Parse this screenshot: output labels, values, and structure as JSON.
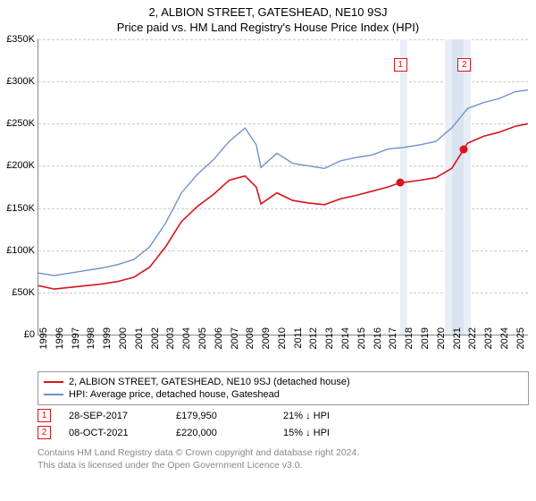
{
  "title_line1": "2, ALBION STREET, GATESHEAD, NE10 9SJ",
  "title_line2": "Price paid vs. HM Land Registry's House Price Index (HPI)",
  "chart": {
    "type": "line",
    "background_color": "#ffffff",
    "grid_color": "#cccccc",
    "x_min": 1995,
    "x_max": 2025.8,
    "y_min": 0,
    "y_max": 350000,
    "y_ticks": [
      0,
      50000,
      100000,
      150000,
      200000,
      250000,
      300000,
      350000
    ],
    "y_tick_labels": [
      "£0",
      "£50K",
      "£100K",
      "£150K",
      "£200K",
      "£250K",
      "£300K",
      "£350K"
    ],
    "x_ticks": [
      1995,
      1996,
      1997,
      1998,
      1999,
      2000,
      2001,
      2002,
      2003,
      2004,
      2005,
      2006,
      2007,
      2008,
      2009,
      2010,
      2011,
      2012,
      2013,
      2014,
      2015,
      2016,
      2017,
      2018,
      2019,
      2020,
      2021,
      2022,
      2023,
      2024,
      2025
    ],
    "label_fontsize": 11,
    "bands": [
      {
        "from": 2017.74,
        "to": 2018.2,
        "color": "#e9edf6"
      },
      {
        "from": 2020.6,
        "to": 2021.0,
        "color": "#e9edf6"
      },
      {
        "from": 2021.0,
        "to": 2021.77,
        "color": "#dbe2f0"
      },
      {
        "from": 2021.77,
        "to": 2022.2,
        "color": "#e9edf6"
      }
    ],
    "series": [
      {
        "name": "hpi",
        "label": "HPI: Average price, detached house, Gateshead",
        "color": "#6f93c9",
        "line_width": 1.4,
        "data": [
          [
            1995,
            73000
          ],
          [
            1996,
            70000
          ],
          [
            1997,
            73000
          ],
          [
            1998,
            76000
          ],
          [
            1999,
            79000
          ],
          [
            2000,
            83000
          ],
          [
            2001,
            89000
          ],
          [
            2002,
            104000
          ],
          [
            2003,
            132000
          ],
          [
            2004,
            168000
          ],
          [
            2005,
            190000
          ],
          [
            2006,
            207000
          ],
          [
            2007,
            229000
          ],
          [
            2008,
            245000
          ],
          [
            2008.7,
            225000
          ],
          [
            2009,
            198000
          ],
          [
            2010,
            215000
          ],
          [
            2011,
            203000
          ],
          [
            2012,
            200000
          ],
          [
            2013,
            197000
          ],
          [
            2014,
            206000
          ],
          [
            2015,
            210000
          ],
          [
            2016,
            213000
          ],
          [
            2017,
            220000
          ],
          [
            2018,
            222000
          ],
          [
            2019,
            225000
          ],
          [
            2020,
            229000
          ],
          [
            2021,
            245000
          ],
          [
            2022,
            268000
          ],
          [
            2023,
            275000
          ],
          [
            2024,
            280000
          ],
          [
            2025,
            288000
          ],
          [
            2025.8,
            290000
          ]
        ]
      },
      {
        "name": "property",
        "label": "2, ALBION STREET, GATESHEAD, NE10 9SJ (detached house)",
        "color": "#d8141a",
        "line_width": 1.6,
        "data": [
          [
            1995,
            58000
          ],
          [
            1996,
            54000
          ],
          [
            1997,
            56000
          ],
          [
            1998,
            58000
          ],
          [
            1999,
            60000
          ],
          [
            2000,
            63000
          ],
          [
            2001,
            68000
          ],
          [
            2002,
            80000
          ],
          [
            2003,
            104000
          ],
          [
            2004,
            134000
          ],
          [
            2005,
            152000
          ],
          [
            2006,
            166000
          ],
          [
            2007,
            183000
          ],
          [
            2008,
            188000
          ],
          [
            2008.7,
            175000
          ],
          [
            2009,
            155000
          ],
          [
            2010,
            168000
          ],
          [
            2011,
            159000
          ],
          [
            2012,
            156000
          ],
          [
            2013,
            154000
          ],
          [
            2014,
            161000
          ],
          [
            2015,
            165000
          ],
          [
            2016,
            170000
          ],
          [
            2017,
            175000
          ],
          [
            2017.74,
            179950
          ],
          [
            2018,
            180500
          ],
          [
            2019,
            183000
          ],
          [
            2020,
            186000
          ],
          [
            2021,
            197000
          ],
          [
            2021.77,
            220000
          ],
          [
            2022,
            227000
          ],
          [
            2023,
            235000
          ],
          [
            2024,
            240000
          ],
          [
            2025,
            247000
          ],
          [
            2025.8,
            250000
          ]
        ]
      }
    ],
    "sale_markers": [
      {
        "num": "1",
        "x": 2017.74,
        "y": 179950,
        "box_y": 320000,
        "color": "#d8141a"
      },
      {
        "num": "2",
        "x": 2021.77,
        "y": 220000,
        "box_y": 320000,
        "color": "#d8141a"
      }
    ]
  },
  "sales": [
    {
      "num": "1",
      "date": "28-SEP-2017",
      "price": "£179,950",
      "delta": "21% ↓ HPI",
      "color": "#d8141a"
    },
    {
      "num": "2",
      "date": "08-OCT-2021",
      "price": "£220,000",
      "delta": "15% ↓ HPI",
      "color": "#d8141a"
    }
  ],
  "footer_line1": "Contains HM Land Registry data © Crown copyright and database right 2024.",
  "footer_line2": "This data is licensed under the Open Government Licence v3.0."
}
